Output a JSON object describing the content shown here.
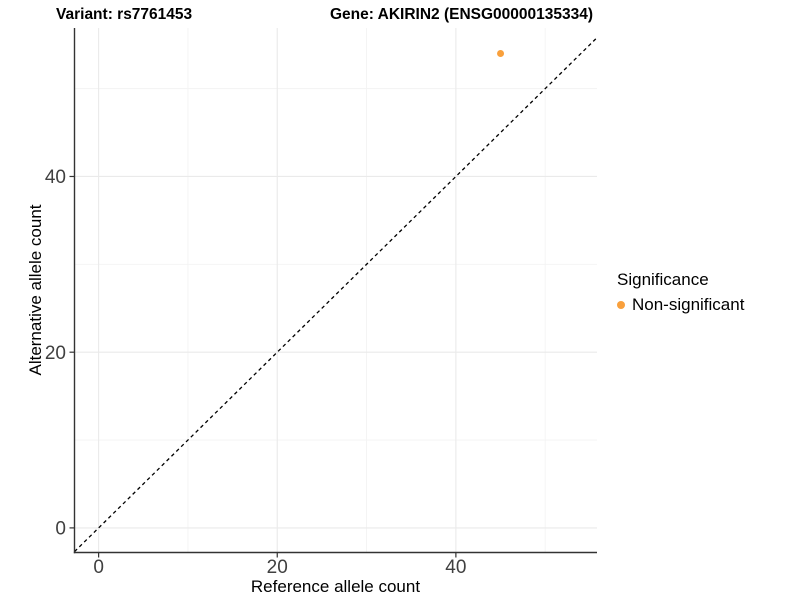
{
  "chart_data": {
    "type": "scatter",
    "title_left": "Variant: rs7761453",
    "title_right": "Gene: AKIRIN2 (ENSG00000135334)",
    "xlabel": "Reference allele count",
    "ylabel": "Alternative allele count",
    "xlim": [
      -2.7,
      55.8
    ],
    "ylim": [
      -2.8,
      56.9
    ],
    "x_ticks": [
      0,
      20,
      40
    ],
    "y_ticks": [
      0,
      20,
      40
    ],
    "x_minor_ticks": [
      10,
      30,
      50
    ],
    "y_minor_ticks": [
      10,
      30,
      50
    ],
    "grid": "major+minor",
    "background": "#FFFFFF",
    "identity_line": {
      "slope": 1,
      "intercept": 0,
      "style": "dashed",
      "color": "#000000"
    },
    "series": [
      {
        "name": "Non-significant",
        "color": "#F9A03C",
        "marker": "circle",
        "points": [
          {
            "x": 45,
            "y": 54
          }
        ]
      }
    ],
    "legend": {
      "title": "Significance",
      "position": "right",
      "items": [
        {
          "label": "Non-significant",
          "color": "#F9A03C"
        }
      ]
    },
    "colors": {
      "axis_line": "#333333",
      "tick_label": "#404040",
      "major_grid": "#EAEAEA",
      "minor_grid": "#F3F3F3"
    }
  }
}
